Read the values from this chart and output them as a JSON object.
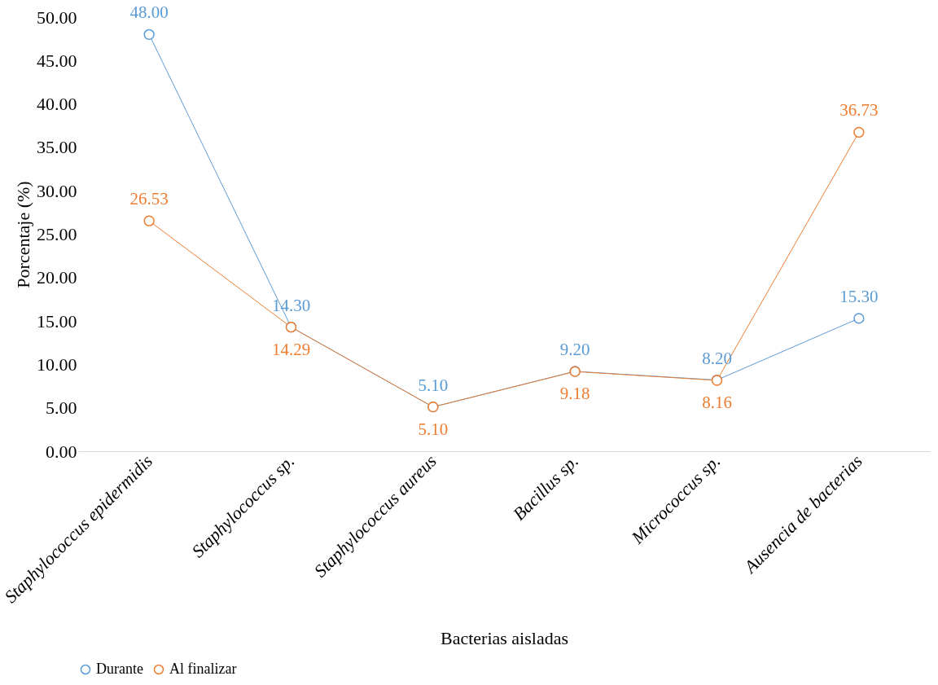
{
  "chart_data": {
    "type": "line",
    "xlabel": "Bacterias aisladas",
    "ylabel": "Porcentaje (%)",
    "categories": [
      "Staphylococcus epidermidis",
      "Staphylococcus sp.",
      "Staphylococcus aureus",
      "Bacillus sp.",
      "Micrococcus sp.",
      "Ausencia de bacterias"
    ],
    "series": [
      {
        "name": "Durante",
        "color": "#5b9bd5",
        "values": [
          48.0,
          14.3,
          5.1,
          9.2,
          8.2,
          15.3
        ],
        "value_labels": [
          "48.00",
          "14.30",
          "5.10",
          "9.20",
          "8.20",
          "15.30"
        ]
      },
      {
        "name": "Al finalizar",
        "color": "#ed7d31",
        "values": [
          26.53,
          14.29,
          5.1,
          9.18,
          8.16,
          36.73
        ],
        "value_labels": [
          "26.53",
          "14.29",
          "5.10",
          "9.18",
          "8.16",
          "36.73"
        ]
      }
    ],
    "ylim": [
      0,
      50
    ],
    "yticks": [
      {
        "value": 0,
        "label": "0.00"
      },
      {
        "value": 5,
        "label": "5.00"
      },
      {
        "value": 10,
        "label": "10.00"
      },
      {
        "value": 15,
        "label": "15.00"
      },
      {
        "value": 20,
        "label": "20.00"
      },
      {
        "value": 25,
        "label": "25.00"
      },
      {
        "value": 30,
        "label": "30.00"
      },
      {
        "value": 35,
        "label": "35.00"
      },
      {
        "value": 40,
        "label": "40.00"
      },
      {
        "value": 45,
        "label": "45.00"
      },
      {
        "value": 50,
        "label": "50.00"
      }
    ],
    "grid": false,
    "legend": "bottom",
    "marker": "circle",
    "line_style": "solid"
  }
}
